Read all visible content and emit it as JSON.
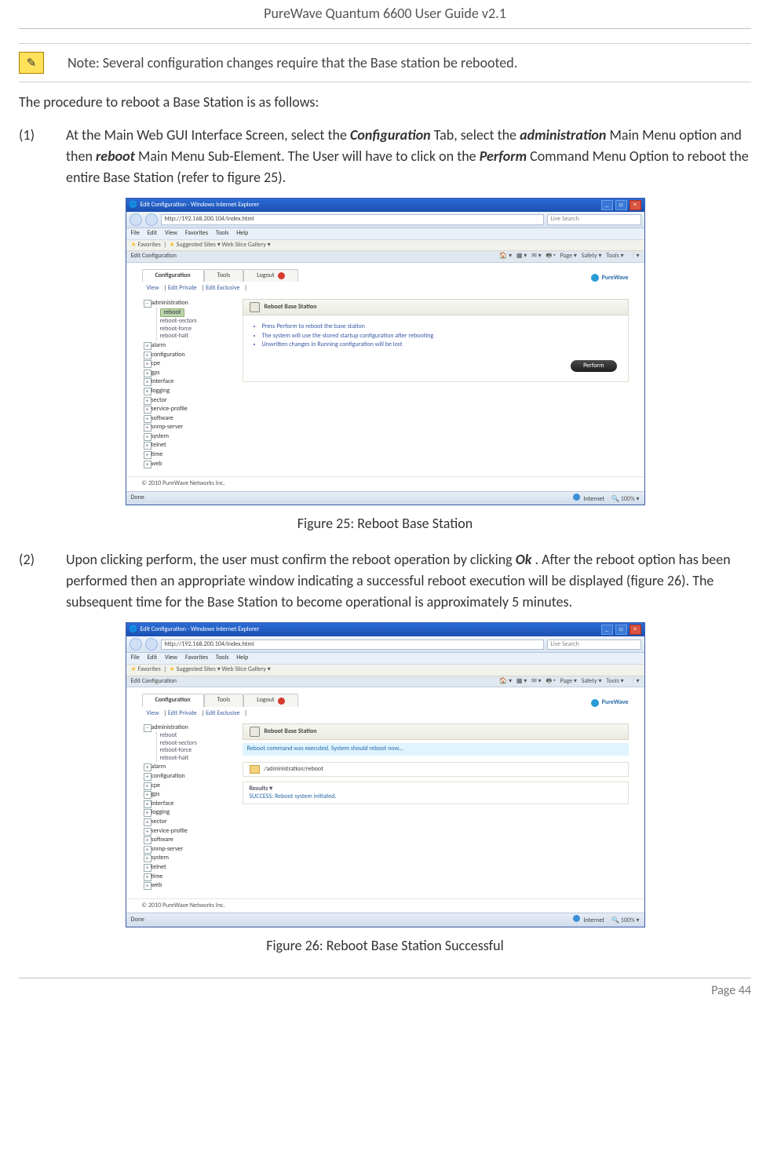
{
  "doc": {
    "header": "PureWave Quantum 6600 User Guide v2.1",
    "note_label": "Note:  Several configuration changes require that the Base station be rebooted.",
    "intro": "The procedure to reboot a Base Station is as follows:",
    "step1_num": "(1)",
    "step1_a": "At the Main Web GUI Interface Screen, select the ",
    "step1_conf": "Configuration",
    "step1_b": " Tab, select the ",
    "step1_admin": "administration",
    "step1_c": " Main Menu option and then ",
    "step1_reboot": "reboot",
    "step1_d": "  Main Menu Sub-Element. The User will have to click on the ",
    "step1_perform": "Perform",
    "step1_e": " Command Menu Option to reboot the entire Base Station (refer to figure 25).",
    "fig25_caption": "Figure 25: Reboot Base Station",
    "step2_num": "(2)",
    "step2_a": "Upon clicking perform, the user must confirm the reboot operation by clicking ",
    "step2_ok": "Ok",
    "step2_b": ".  After the reboot option has been performed then an appropriate window indicating a successful reboot execution will be displayed (figure 26). The subsequent time for the Base Station to become operational is approximately 5 minutes.",
    "fig26_caption": "Figure 26: Reboot Base Station Successful",
    "footer": "Page 44"
  },
  "ie": {
    "title": "Edit Configuration - Windows Internet Explorer",
    "url": "http://192.168.200.104/index.html",
    "search_placeholder": "Live Search",
    "menu_file": "File",
    "menu_edit": "Edit",
    "menu_view": "View",
    "menu_fav": "Favorites",
    "menu_tools": "Tools",
    "menu_help": "Help",
    "fav_label": "Favorites",
    "fav_suggested": "Suggested Sites ▾",
    "fav_slice": "Web Slice Gallery ▾",
    "tab_label": "Edit Configuration",
    "tb_page": "Page ▾",
    "tb_safety": "Safety ▾",
    "tb_tools": "Tools ▾",
    "status_done": "Done",
    "status_internet": "Internet",
    "status_zoom": "100%"
  },
  "app": {
    "tab_conf": "Configuration",
    "tab_tools": "Tools",
    "tab_logout": "Logout",
    "sub_view": "View",
    "sub_editpriv": "Edit Private",
    "sub_editexcl": "Edit Exclusive",
    "brand": "PureWave",
    "tree": {
      "administration": "administration",
      "reboot": "reboot",
      "reboot_sectors": "reboot-sectors",
      "reboot_force": "reboot-force",
      "reboot_halt": "reboot-halt",
      "alarm": "alarm",
      "configuration": "configuration",
      "cpe": "cpe",
      "gps": "gps",
      "interface": "interface",
      "logging": "logging",
      "sector": "sector",
      "service_profile": "service-profile",
      "software": "software",
      "snmp_server": "snmp-server",
      "system": "system",
      "telnet": "telnet",
      "time": "time",
      "web": "web"
    },
    "panel_title": "Reboot Base Station",
    "bullet1": "Press Perform to reboot the base station",
    "bullet2": "The system will use the stored startup configuration after rebooting",
    "bullet3": "Unwritten changes in Running configuration will be lost",
    "perform": "Perform",
    "success_msg": "Reboot command was executed. System should reboot now...",
    "path": "/administration/reboot",
    "results_label": "Results ▾",
    "results_text": "SUCCESS: Reboot system initiated.",
    "copyright": "© 2010 PureWave Networks Inc."
  }
}
